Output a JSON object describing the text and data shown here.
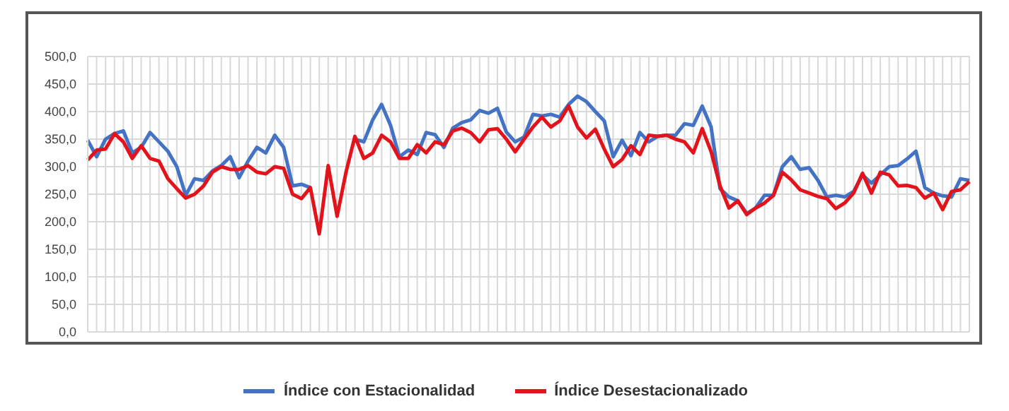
{
  "chart_data": {
    "type": "line",
    "categories": [
      null,
      null,
      null,
      null,
      null,
      null,
      null,
      null,
      null,
      null,
      null,
      null,
      null,
      null,
      null,
      null,
      null,
      null,
      null,
      null,
      null,
      null,
      null,
      null,
      null,
      null,
      null,
      null,
      null,
      null,
      null,
      null,
      null,
      null,
      null,
      null,
      null,
      null,
      null,
      null,
      null,
      null,
      null,
      null,
      null,
      null,
      null,
      null,
      null,
      null,
      null,
      null,
      null,
      null,
      null,
      null,
      null,
      null,
      null,
      null,
      null,
      null,
      null,
      null,
      null,
      null,
      null,
      null,
      null,
      null,
      null,
      null,
      null,
      null,
      null,
      null,
      null,
      null,
      null,
      null,
      null,
      null,
      null,
      null,
      null,
      null,
      null,
      null,
      null,
      null,
      null,
      null,
      null,
      null,
      null,
      null,
      null,
      null,
      null,
      null
    ],
    "series": [
      {
        "name": "Índice con Estacionalidad",
        "color": "#4472c4",
        "values": [
          348,
          318,
          350,
          360,
          365,
          325,
          335,
          362,
          345,
          328,
          300,
          248,
          278,
          275,
          292,
          302,
          318,
          280,
          310,
          335,
          325,
          357,
          335,
          265,
          268,
          262,
          null,
          null,
          null,
          null,
          350,
          345,
          385,
          413,
          375,
          318,
          330,
          322,
          362,
          358,
          335,
          370,
          380,
          385,
          402,
          397,
          406,
          363,
          345,
          354,
          395,
          392,
          395,
          390,
          413,
          428,
          418,
          400,
          383,
          318,
          348,
          320,
          362,
          345,
          355,
          357,
          357,
          378,
          375,
          410,
          372,
          260,
          245,
          238,
          215,
          225,
          248,
          248,
          300,
          318,
          295,
          298,
          275,
          245,
          248,
          245,
          255,
          285,
          270,
          285,
          300,
          302,
          314,
          328,
          262,
          252,
          247,
          245,
          278,
          275
        ]
      },
      {
        "name": "Índice Desestacionalizado",
        "color": "#e3131b",
        "values": [
          312,
          330,
          332,
          360,
          345,
          315,
          338,
          315,
          310,
          278,
          260,
          243,
          250,
          265,
          290,
          300,
          295,
          295,
          302,
          290,
          287,
          300,
          297,
          250,
          242,
          262,
          178,
          302,
          210,
          290,
          355,
          315,
          325,
          357,
          345,
          315,
          315,
          340,
          325,
          345,
          340,
          365,
          370,
          362,
          345,
          367,
          369,
          350,
          327,
          350,
          372,
          390,
          372,
          383,
          410,
          372,
          352,
          368,
          332,
          300,
          313,
          338,
          322,
          357,
          355,
          357,
          350,
          345,
          325,
          369,
          327,
          265,
          225,
          238,
          213,
          225,
          234,
          248,
          290,
          276,
          258,
          252,
          246,
          242,
          224,
          234,
          252,
          288,
          252,
          290,
          285,
          265,
          266,
          262,
          243,
          252,
          222,
          255,
          258,
          273
        ]
      }
    ],
    "ylim": [
      0,
      500
    ],
    "yticks": [
      {
        "value": 0,
        "label": "0,0"
      },
      {
        "value": 50,
        "label": "50,0"
      },
      {
        "value": 100,
        "label": "100,0"
      },
      {
        "value": 150,
        "label": "150,0"
      },
      {
        "value": 200,
        "label": "200,0"
      },
      {
        "value": 250,
        "label": "250,0"
      },
      {
        "value": 300,
        "label": "300,0"
      },
      {
        "value": 350,
        "label": "350,0"
      },
      {
        "value": 400,
        "label": "400,0"
      },
      {
        "value": 450,
        "label": "450,0"
      },
      {
        "value": 500,
        "label": "500,0"
      }
    ],
    "grid": true,
    "legend": "bottom",
    "marker": "none",
    "line_style": "solid"
  }
}
